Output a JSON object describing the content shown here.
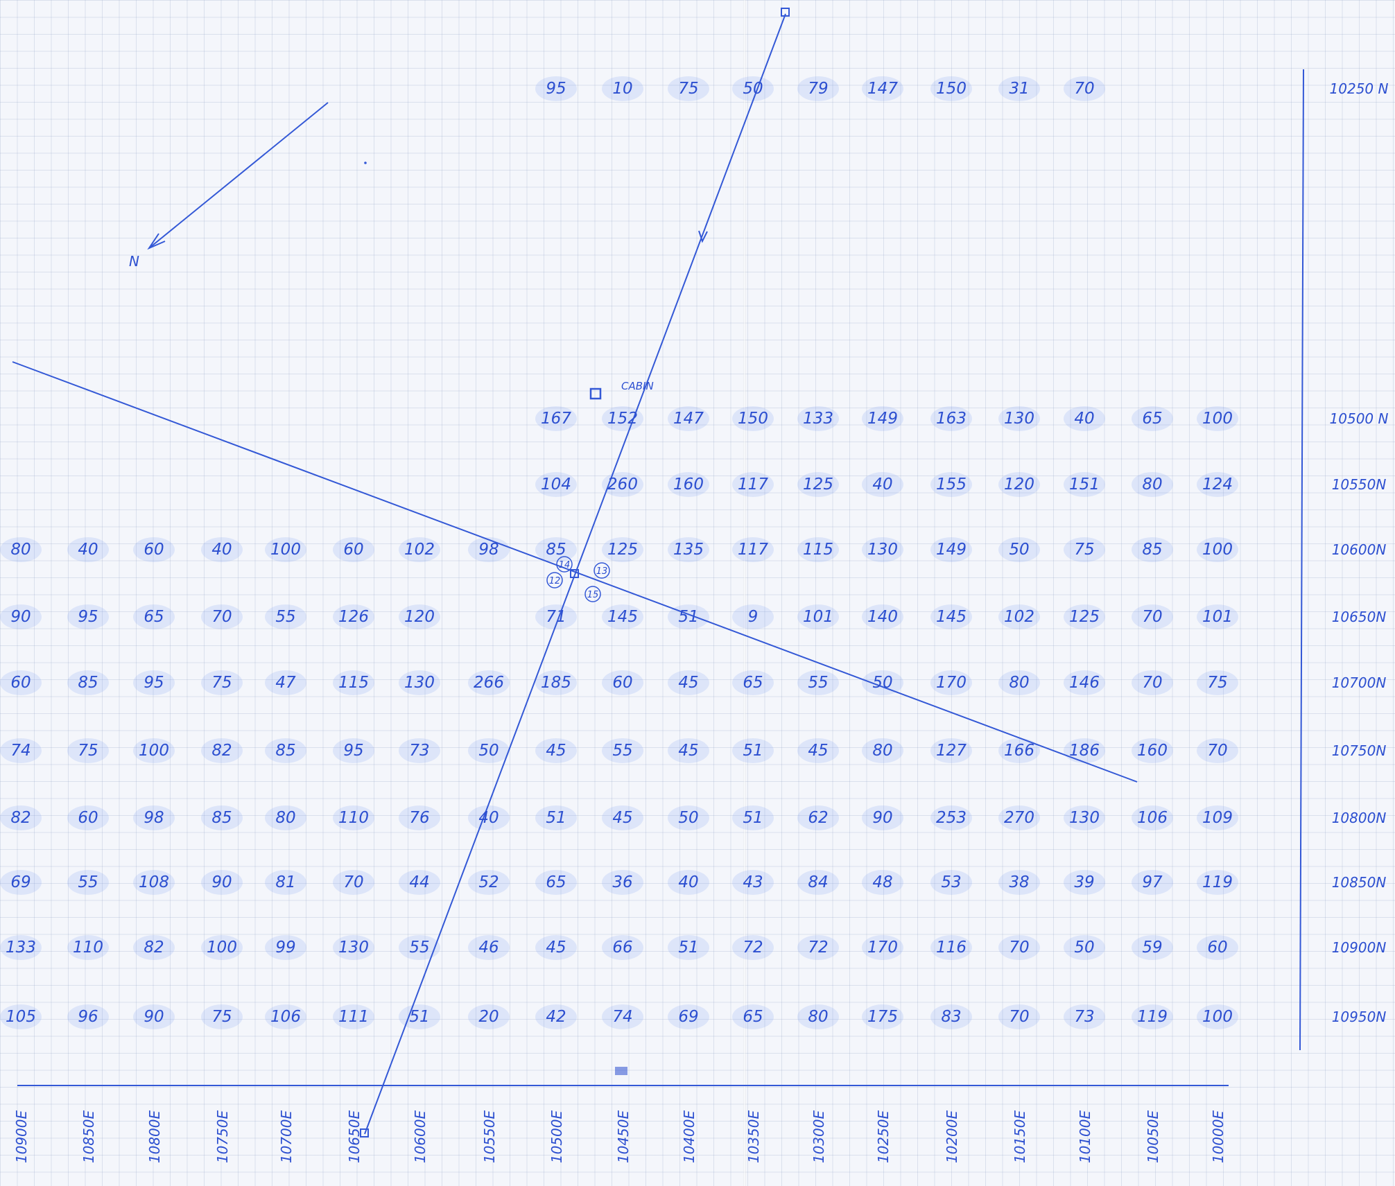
{
  "north_arrow_label": "N",
  "cabin_label": "CABIN",
  "station_numbers": [
    "14",
    "13",
    "12",
    "15"
  ],
  "northings": [
    "10250 N",
    "10500 N",
    "10550N",
    "10600N",
    "10650N",
    "10700N",
    "10750N",
    "10800N",
    "10850N",
    "10900N",
    "10950N"
  ],
  "eastings": [
    "10900E",
    "10850E",
    "10800E",
    "10750E",
    "10700E",
    "10650E",
    "10600E",
    "10550E",
    "10500E",
    "10450E",
    "10400E",
    "10350E",
    "10300E",
    "10250E",
    "10200E",
    "10150E",
    "10100E",
    "10050E",
    "10000E"
  ],
  "grid": {
    "10250 N": [
      null,
      null,
      null,
      null,
      null,
      null,
      null,
      null,
      "95",
      "10",
      "75",
      "50",
      "79",
      "147",
      "150",
      "31",
      "70",
      null,
      null
    ],
    "10500 N": [
      null,
      null,
      null,
      null,
      null,
      null,
      null,
      null,
      "167",
      "152",
      "147",
      "150",
      "133",
      "149",
      "163",
      "130",
      "40",
      "65",
      "100"
    ],
    "10550N": [
      null,
      null,
      null,
      null,
      null,
      null,
      null,
      null,
      "104",
      "260",
      "160",
      "117",
      "125",
      "40",
      "155",
      "120",
      "151",
      "80",
      "124"
    ],
    "10600N": [
      "80",
      "40",
      "60",
      "40",
      "100",
      "60",
      "102",
      "98",
      "85",
      "125",
      "135",
      "117",
      "115",
      "130",
      "149",
      "50",
      "75",
      "85",
      "100"
    ],
    "10650N": [
      "90",
      "95",
      "65",
      "70",
      "55",
      "126",
      "120",
      null,
      "71",
      "145",
      "51",
      "9",
      "101",
      "140",
      "145",
      "102",
      "125",
      "70",
      "101"
    ],
    "10700N": [
      "60",
      "85",
      "95",
      "75",
      "47",
      "115",
      "130",
      "266",
      "185",
      "60",
      "45",
      "65",
      "55",
      "50",
      "170",
      "80",
      "146",
      "70",
      "75"
    ],
    "10750N": [
      "74",
      "75",
      "100",
      "82",
      "85",
      "95",
      "73",
      "50",
      "45",
      "55",
      "45",
      "51",
      "45",
      "80",
      "127",
      "166",
      "186",
      "160",
      "70"
    ],
    "10800N": [
      "82",
      "60",
      "98",
      "85",
      "80",
      "110",
      "76",
      "40",
      "51",
      "45",
      "50",
      "51",
      "62",
      "90",
      "253",
      "270",
      "130",
      "106",
      "109"
    ],
    "10850N": [
      "69",
      "55",
      "108",
      "90",
      "81",
      "70",
      "44",
      "52",
      "65",
      "36",
      "40",
      "43",
      "84",
      "48",
      "53",
      "38",
      "39",
      "97",
      "119"
    ],
    "10900N": [
      "133",
      "110",
      "82",
      "100",
      "99",
      "130",
      "55",
      "46",
      "45",
      "66",
      "51",
      "72",
      "72",
      "170",
      "116",
      "70",
      "50",
      "59",
      "60"
    ],
    "10950N": [
      "105",
      "96",
      "90",
      "75",
      "106",
      "111",
      "51",
      "20",
      "42",
      "74",
      "69",
      "65",
      "80",
      "175",
      "83",
      "70",
      "73",
      "119",
      "100"
    ]
  }
}
